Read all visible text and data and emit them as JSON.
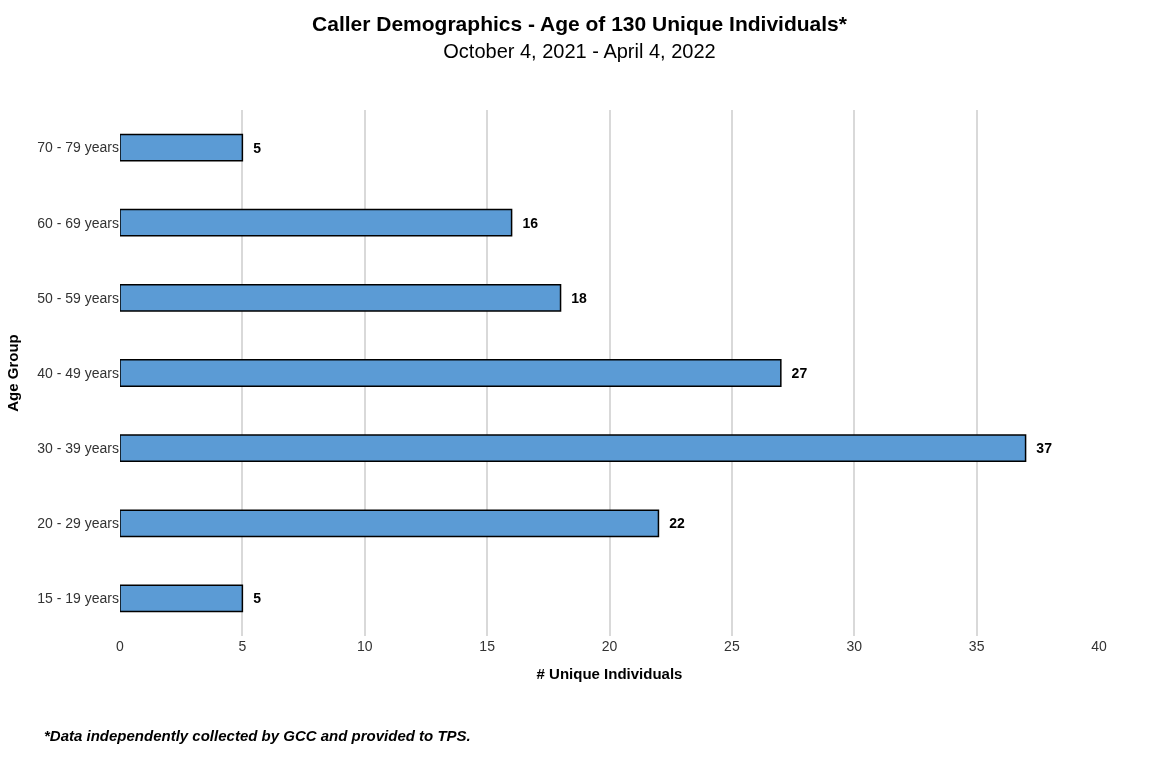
{
  "chart_data": {
    "type": "bar",
    "orientation": "horizontal",
    "title": "Caller Demographics - Age of 130 Unique Individuals*",
    "subtitle": "October 4, 2021 - April 4, 2022",
    "xlabel": "# Unique Individuals",
    "ylabel": "Age Group",
    "categories": [
      "70 - 79 years",
      "60 - 69 years",
      "50 - 59 years",
      "40 - 49 years",
      "30 - 39 years",
      "20 - 29 years",
      "15 - 19 years"
    ],
    "values": [
      5,
      16,
      18,
      27,
      37,
      22,
      5
    ],
    "color": "#5b9bd5",
    "data_labels": true,
    "xlim": [
      0,
      40
    ],
    "xticks": [
      0,
      5,
      10,
      15,
      20,
      25,
      30,
      35,
      40
    ],
    "grid": "x",
    "annotations": [
      "*Data independently collected by GCC and provided to TPS."
    ]
  }
}
